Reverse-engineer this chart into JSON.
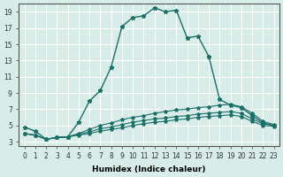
{
  "xlabel": "Humidex (Indice chaleur)",
  "ylabel": "",
  "background_color": "#d8ece8",
  "line_color": "#1a7068",
  "grid_color": "#ffffff",
  "xlim": [
    -0.5,
    23.5
  ],
  "ylim": [
    2.5,
    20
  ],
  "xticks": [
    0,
    1,
    2,
    3,
    4,
    5,
    6,
    7,
    8,
    9,
    10,
    11,
    12,
    13,
    14,
    15,
    16,
    17,
    18,
    19,
    20,
    21,
    22,
    23
  ],
  "yticks": [
    3,
    5,
    7,
    9,
    11,
    13,
    15,
    17,
    19
  ],
  "curve1_x": [
    0,
    1,
    2,
    3,
    4,
    5,
    6,
    7,
    8,
    9,
    10,
    11,
    12,
    13,
    14,
    15,
    16,
    17,
    18,
    19,
    20,
    21,
    22,
    23
  ],
  "curve1_y": [
    4.8,
    4.3,
    3.3,
    3.5,
    3.6,
    5.4,
    8.0,
    9.3,
    12.2,
    17.2,
    18.3,
    18.5,
    19.5,
    19.0,
    19.2,
    15.8,
    16.0,
    13.5,
    8.2,
    7.5,
    7.2,
    6.2,
    5.3,
    5.0
  ],
  "curve2_x": [
    0,
    1,
    2,
    3,
    4,
    5,
    6,
    7,
    8,
    9,
    10,
    11,
    12,
    13,
    14,
    15,
    16,
    17,
    18,
    19,
    20,
    21,
    22,
    23
  ],
  "curve2_y": [
    4.0,
    3.8,
    3.3,
    3.5,
    3.6,
    4.0,
    4.5,
    5.0,
    5.3,
    5.7,
    6.0,
    6.2,
    6.5,
    6.7,
    6.9,
    7.0,
    7.2,
    7.3,
    7.5,
    7.6,
    7.3,
    6.5,
    5.5,
    5.1
  ],
  "curve3_x": [
    0,
    1,
    2,
    3,
    4,
    5,
    6,
    7,
    8,
    9,
    10,
    11,
    12,
    13,
    14,
    15,
    16,
    17,
    18,
    19,
    20,
    21,
    22,
    23
  ],
  "curve3_y": [
    4.0,
    3.8,
    3.3,
    3.5,
    3.6,
    3.9,
    4.2,
    4.6,
    4.8,
    5.1,
    5.4,
    5.6,
    5.8,
    5.9,
    6.1,
    6.2,
    6.4,
    6.5,
    6.6,
    6.7,
    6.5,
    5.8,
    5.2,
    5.0
  ],
  "curve4_x": [
    0,
    1,
    2,
    3,
    4,
    5,
    6,
    7,
    8,
    9,
    10,
    11,
    12,
    13,
    14,
    15,
    16,
    17,
    18,
    19,
    20,
    21,
    22,
    23
  ],
  "curve4_y": [
    4.0,
    3.8,
    3.3,
    3.5,
    3.6,
    3.8,
    4.0,
    4.3,
    4.5,
    4.7,
    5.0,
    5.2,
    5.4,
    5.5,
    5.7,
    5.8,
    6.0,
    6.1,
    6.2,
    6.3,
    6.1,
    5.5,
    5.0,
    4.9
  ]
}
